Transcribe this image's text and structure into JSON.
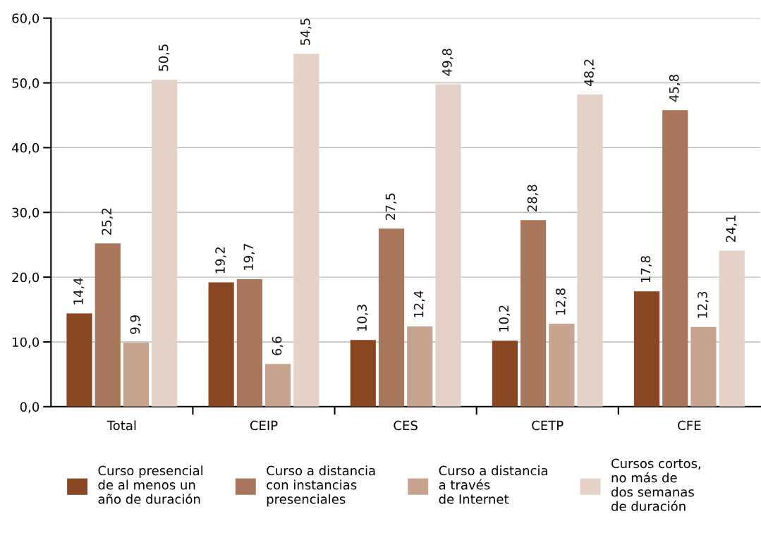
{
  "chart_data": {
    "type": "bar",
    "categories": [
      "Total",
      "CEIP",
      "CES",
      "CETP",
      "CFE"
    ],
    "series": [
      {
        "name": "Curso presencial\nde al menos un\naño de duración",
        "color": "#8a4522",
        "values": [
          14.4,
          19.2,
          10.3,
          10.2,
          17.8
        ],
        "value_labels": [
          "14,4",
          "19,2",
          "10,3",
          "10,2",
          "17,8"
        ]
      },
      {
        "name": "Curso a distancia\ncon instancias\npresenciales",
        "color": "#a8765a",
        "values": [
          25.2,
          19.7,
          27.5,
          28.8,
          45.8
        ],
        "value_labels": [
          "25,2",
          "19,7",
          "27,5",
          "28,8",
          "45,8"
        ]
      },
      {
        "name": "Curso a distancia\na través\nde Internet",
        "color": "#c6a28f",
        "values": [
          9.9,
          6.6,
          12.4,
          12.8,
          12.3
        ],
        "value_labels": [
          "9,9",
          "6,6",
          "12,4",
          "12,8",
          "12,3"
        ]
      },
      {
        "name": "Cursos cortos,\nno más de\ndos semanas\nde duración",
        "color": "#e4d1c7",
        "values": [
          50.5,
          54.5,
          49.8,
          48.2,
          24.1
        ],
        "value_labels": [
          "50,5",
          "54,5",
          "49,8",
          "48,2",
          "24,1"
        ]
      }
    ],
    "ylim": [
      0,
      60
    ],
    "yticks": [
      {
        "value": 0,
        "label": "0,0"
      },
      {
        "value": 10,
        "label": "10,0"
      },
      {
        "value": 20,
        "label": "20,0"
      },
      {
        "value": 30,
        "label": "30,0"
      },
      {
        "value": 40,
        "label": "40,0"
      },
      {
        "value": 50,
        "label": "50,0"
      },
      {
        "value": 60,
        "label": "60,0"
      }
    ],
    "grid": "y",
    "legend": "bottom"
  }
}
